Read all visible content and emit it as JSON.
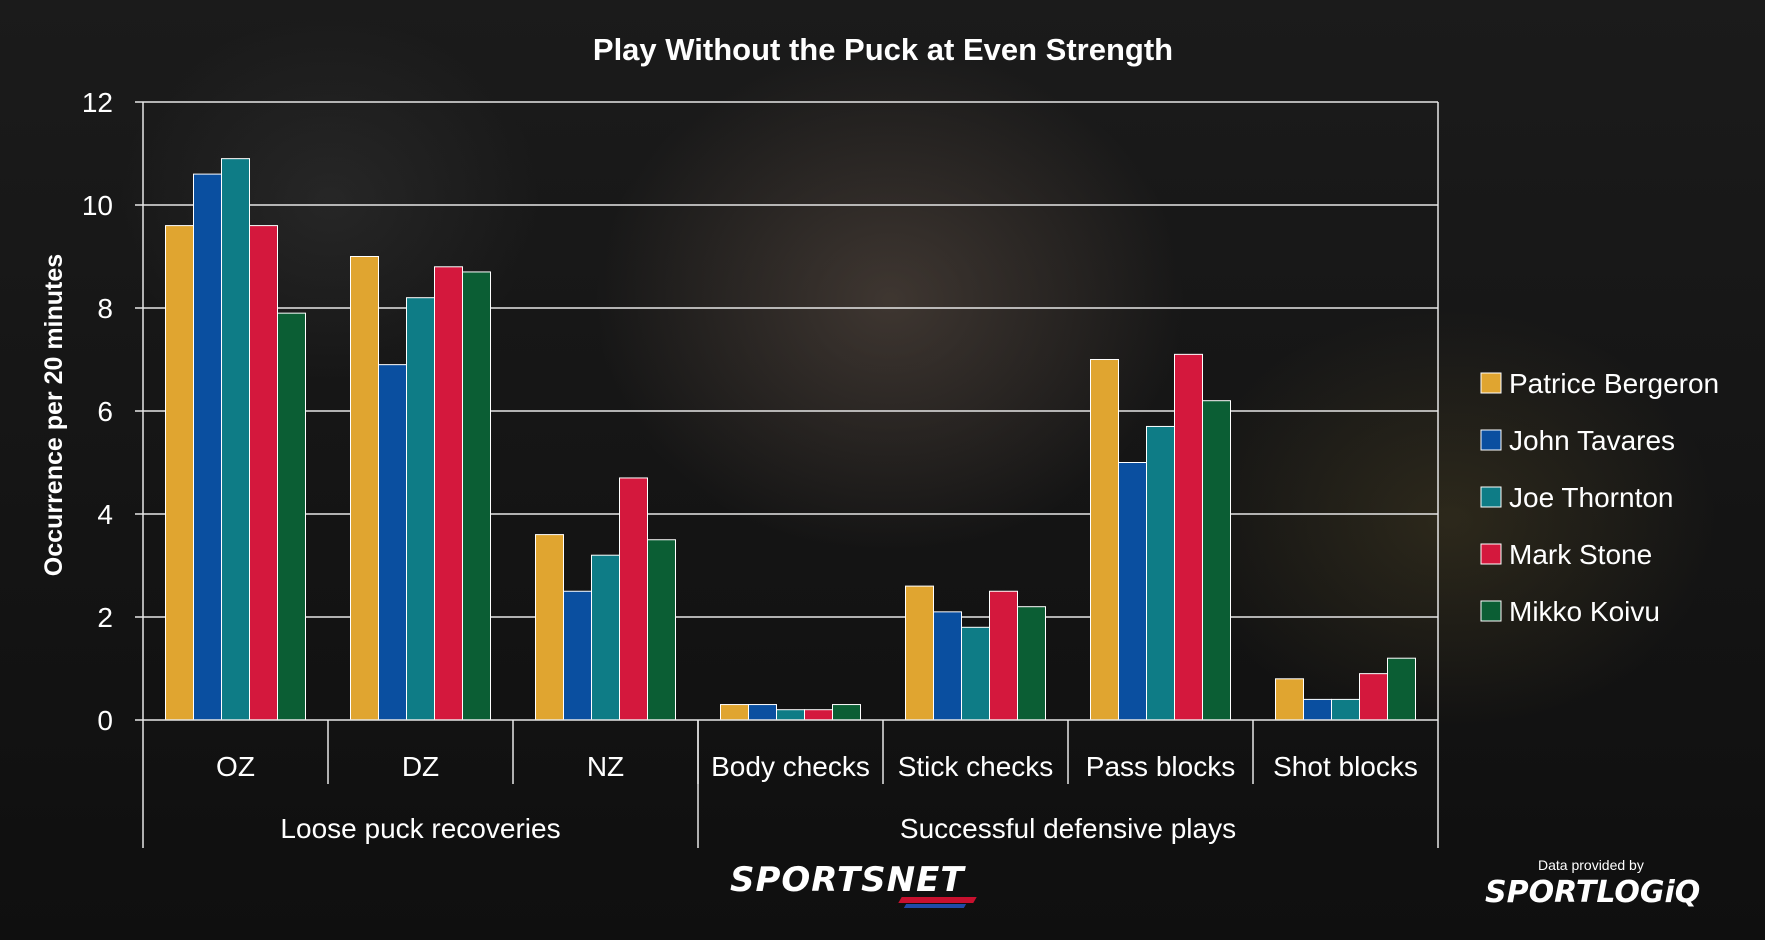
{
  "chart_data": {
    "type": "bar",
    "title": "Play Without the Puck at Even Strength",
    "ylabel": "Occurrence per 20 minutes",
    "xlabel": "",
    "ylim": [
      0,
      12
    ],
    "yticks": [
      0,
      2,
      4,
      6,
      8,
      10,
      12
    ],
    "grid": true,
    "legend_position": "right",
    "categories": [
      "OZ",
      "DZ",
      "NZ",
      "Body checks",
      "Stick checks",
      "Pass blocks",
      "Shot blocks"
    ],
    "groups": [
      {
        "label": "Loose puck recoveries",
        "categories": [
          "OZ",
          "DZ",
          "NZ"
        ]
      },
      {
        "label": "Successful defensive plays",
        "categories": [
          "Body checks",
          "Stick checks",
          "Pass blocks",
          "Shot blocks"
        ]
      }
    ],
    "series": [
      {
        "name": "Patrice Bergeron",
        "color": "#E0A530",
        "values": [
          9.6,
          9.0,
          3.6,
          0.3,
          2.6,
          7.0,
          0.8
        ]
      },
      {
        "name": "John Tavares",
        "color": "#0A4FA0",
        "values": [
          10.6,
          6.9,
          2.5,
          0.3,
          2.1,
          5.0,
          0.4
        ]
      },
      {
        "name": "Joe Thornton",
        "color": "#0E7C86",
        "values": [
          10.9,
          8.2,
          3.2,
          0.2,
          1.8,
          5.7,
          0.4
        ]
      },
      {
        "name": "Mark Stone",
        "color": "#D4183D",
        "values": [
          9.6,
          8.8,
          4.7,
          0.2,
          2.5,
          7.1,
          0.9
        ]
      },
      {
        "name": "Mikko Koivu",
        "color": "#0B5E34",
        "values": [
          7.9,
          8.7,
          3.5,
          0.3,
          2.2,
          6.2,
          1.2
        ]
      }
    ]
  },
  "branding": {
    "sportsnet": "SPORTSNET",
    "provided_by": "Data provided by",
    "sportlogiq": "SPORTLOGiQ"
  }
}
